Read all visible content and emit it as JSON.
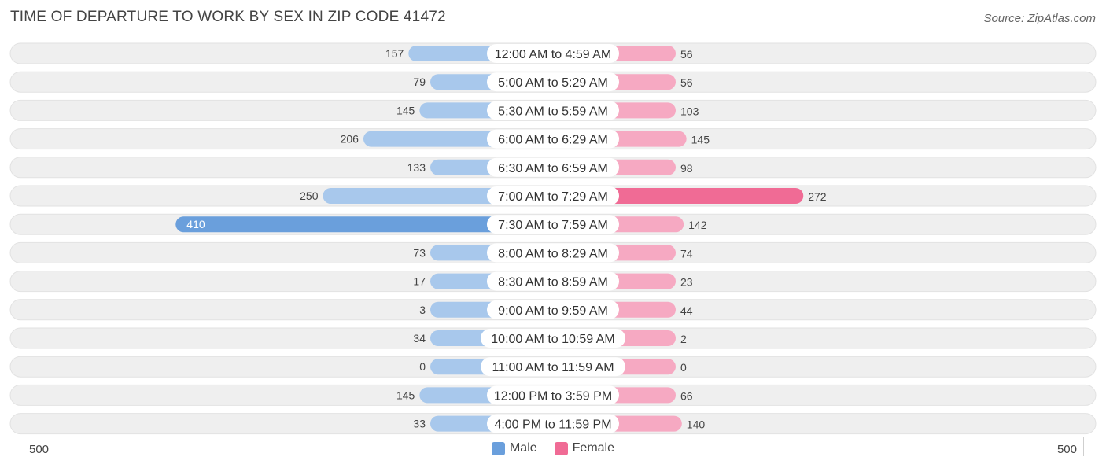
{
  "header": {
    "title": "TIME OF DEPARTURE TO WORK BY SEX IN ZIP CODE 41472",
    "source": "Source: ZipAtlas.com"
  },
  "colors": {
    "male_strong": "#6a9fdc",
    "male_light": "#a8c8ec",
    "female_strong": "#f06b95",
    "female_light": "#f6a9c2",
    "row_bg": "#efefef",
    "label_bg": "#ffffff"
  },
  "chart_data": {
    "type": "bar",
    "orientation": "horizontal-diverging",
    "categories": [
      "12:00 AM to 4:59 AM",
      "5:00 AM to 5:29 AM",
      "5:30 AM to 5:59 AM",
      "6:00 AM to 6:29 AM",
      "6:30 AM to 6:59 AM",
      "7:00 AM to 7:29 AM",
      "7:30 AM to 7:59 AM",
      "8:00 AM to 8:29 AM",
      "8:30 AM to 8:59 AM",
      "9:00 AM to 9:59 AM",
      "10:00 AM to 10:59 AM",
      "11:00 AM to 11:59 AM",
      "12:00 PM to 3:59 PM",
      "4:00 PM to 11:59 PM"
    ],
    "series": [
      {
        "name": "Male",
        "values": [
          157,
          79,
          145,
          206,
          133,
          250,
          410,
          73,
          17,
          3,
          34,
          0,
          145,
          33
        ]
      },
      {
        "name": "Female",
        "values": [
          56,
          56,
          103,
          145,
          98,
          272,
          142,
          74,
          23,
          44,
          2,
          0,
          66,
          140
        ]
      }
    ],
    "xlim": [
      -500,
      500
    ],
    "axis_left_label": "500",
    "axis_right_label": "500",
    "legend_position": "bottom-center",
    "grid": false
  }
}
